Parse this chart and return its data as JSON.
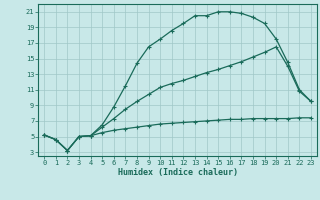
{
  "xlabel": "Humidex (Indice chaleur)",
  "bg_color": "#c8e8e8",
  "line_color": "#1a6b5a",
  "grid_color": "#a0c8c8",
  "xlim": [
    -0.5,
    23.5
  ],
  "ylim": [
    2.5,
    22
  ],
  "xticks": [
    0,
    1,
    2,
    3,
    4,
    5,
    6,
    7,
    8,
    9,
    10,
    11,
    12,
    13,
    14,
    15,
    16,
    17,
    18,
    19,
    20,
    21,
    22,
    23
  ],
  "yticks": [
    3,
    5,
    7,
    9,
    11,
    13,
    15,
    17,
    19,
    21
  ],
  "line1_x": [
    0,
    1,
    2,
    3,
    4,
    5,
    6,
    7,
    8,
    9,
    10,
    11,
    12,
    13,
    14,
    15,
    16,
    17,
    18,
    19,
    20,
    21,
    22,
    23
  ],
  "line1_y": [
    5.2,
    4.6,
    3.2,
    5.0,
    5.1,
    5.5,
    5.8,
    6.0,
    6.2,
    6.4,
    6.6,
    6.7,
    6.8,
    6.9,
    7.0,
    7.1,
    7.2,
    7.2,
    7.3,
    7.3,
    7.3,
    7.3,
    7.4,
    7.4
  ],
  "line2_x": [
    0,
    1,
    2,
    3,
    4,
    5,
    6,
    7,
    8,
    9,
    10,
    11,
    12,
    13,
    14,
    15,
    16,
    17,
    18,
    19,
    20,
    21,
    22,
    23
  ],
  "line2_y": [
    5.2,
    4.6,
    3.2,
    5.0,
    5.1,
    6.2,
    7.3,
    8.5,
    9.5,
    10.4,
    11.3,
    11.8,
    12.2,
    12.7,
    13.2,
    13.6,
    14.1,
    14.6,
    15.2,
    15.8,
    16.5,
    14.0,
    10.8,
    9.5
  ],
  "line3_x": [
    0,
    1,
    2,
    3,
    4,
    5,
    6,
    7,
    8,
    9,
    10,
    11,
    12,
    13,
    14,
    15,
    16,
    17,
    18,
    19,
    20,
    21,
    22,
    23
  ],
  "line3_y": [
    5.2,
    4.6,
    3.2,
    5.0,
    5.1,
    6.5,
    8.8,
    11.5,
    14.4,
    16.5,
    17.5,
    18.6,
    19.5,
    20.5,
    20.5,
    21.0,
    21.0,
    20.8,
    20.3,
    19.5,
    17.5,
    14.5,
    11.0,
    9.5
  ]
}
